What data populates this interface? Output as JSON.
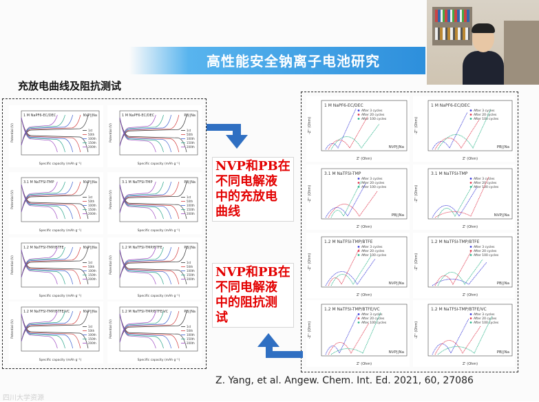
{
  "slide": {
    "title": "高性能安全钠离子电池研究",
    "section_title": "充放电曲线及阻抗测试",
    "textbox_top": [
      "NVP和PB在",
      "不同电解液",
      "中的充放电",
      "曲线"
    ],
    "textbox_bottom": [
      "NVP和PB在",
      "不同电解液",
      "中的阻抗测",
      "试"
    ],
    "citation": "Z. Yang, et al. Angew. Chem. Int. Ed. 2021, 60, 27086",
    "bottom_text": "四川大学资源"
  },
  "left_plots": [
    {
      "label": "1 M NaPF6-EC/DEC",
      "cell": "NVP||Na",
      "legend": [
        "1st",
        "50th",
        "100th",
        "150th",
        "200th"
      ]
    },
    {
      "label": "1 M NaPF6-EC/DEC",
      "cell": "PB||Na",
      "legend": [
        "1st",
        "50th",
        "100th",
        "150th",
        "200th"
      ]
    },
    {
      "label": "3.1 M NaTFSI-TMP",
      "cell": "NVP||Na",
      "legend": [
        "1st",
        "50th",
        "100th",
        "150th",
        "200th"
      ]
    },
    {
      "label": "3.1 M NaTFSI-TMP",
      "cell": "PB||Na",
      "legend": [
        "1st",
        "50th",
        "100th",
        "150th",
        "200th"
      ]
    },
    {
      "label": "1.2 M NaTFSI-TMP/BTFE",
      "cell": "NVP||Na",
      "legend": [
        "1st",
        "50th",
        "100th",
        "150th",
        "200th"
      ]
    },
    {
      "label": "1.2 M NaTFSI-TMP/BTFE",
      "cell": "PB||Na",
      "legend": [
        "1st",
        "50th",
        "100th",
        "150th",
        "200th"
      ]
    },
    {
      "label": "1.2 M NaTFSI-TMP/BTFE/VC",
      "cell": "NVP||Na",
      "legend": [
        "1st",
        "50th",
        "100th",
        "150th",
        "200th"
      ]
    },
    {
      "label": "1.2 M NaTFSI-TMP/BTFE/VC",
      "cell": "PB||Na",
      "legend": [
        "1st",
        "50th",
        "100th",
        "150th",
        "200th"
      ]
    }
  ],
  "left_axes": {
    "x": "Specific capacity (mAh g⁻¹)",
    "y": "Potential (V)"
  },
  "right_plots": [
    {
      "label": "1 M NaPF6-EC/DEC",
      "cell": "NVP||Na"
    },
    {
      "label": "1 M NaPF6-EC/DEC",
      "cell": "PB||Na"
    },
    {
      "label": "3.1 M NaTFSI-TMP",
      "cell": "PB||Na"
    },
    {
      "label": "3.1 M NaTFSI-TMP",
      "cell": "NVP||Na"
    },
    {
      "label": "1.2 M NaTFSI-TMP/BTFE",
      "cell": "NVP||Na"
    },
    {
      "label": "1.2 M NaTFSI-TMP/BTFE",
      "cell": "PB||Na"
    },
    {
      "label": "1.2 M NaTFSI-TMP/BTFE/VC",
      "cell": "NVP||Na"
    },
    {
      "label": "1.2 M NaTFSI-TMP/BTFE/VC",
      "cell": "PB||Na"
    }
  ],
  "right_axes": {
    "x": "Z' (Ohm)",
    "y": "-Z'' (Ohm)"
  },
  "right_legend": [
    "After 3 cycles",
    "After 20 cycles",
    "After 100 cycles"
  ],
  "colors": {
    "title_blue": "#2d8fdc",
    "text_red": "#e30000",
    "arrow_blue": "#2f6fc2",
    "series": [
      "#3a3ad8",
      "#e0364c",
      "#2bb58a"
    ]
  }
}
